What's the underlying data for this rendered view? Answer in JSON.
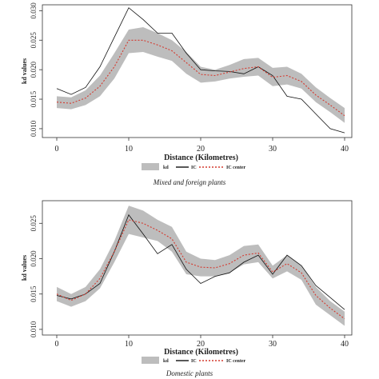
{
  "chart_data": [
    {
      "type": "line",
      "xlabel": "Distance (Kilometres)",
      "ylabel": "kd values",
      "caption": "Mixed and foreign plants",
      "xlim": [
        -2,
        41
      ],
      "ylim": [
        0.0085,
        0.031
      ],
      "xticks": [
        0,
        10,
        20,
        30,
        40
      ],
      "yticks": [
        0.01,
        0.015,
        0.02,
        0.025,
        0.03
      ],
      "ytick_labels": [
        "0.010",
        "0.015",
        "0.020",
        "0.025",
        "0.030"
      ],
      "legend": [
        "kd",
        "IC",
        "IC center"
      ],
      "x": [
        0,
        2,
        4,
        6,
        8,
        10,
        12,
        14,
        16,
        18,
        20,
        22,
        24,
        26,
        28,
        30,
        32,
        34,
        36,
        38,
        40
      ],
      "series": [
        {
          "name": "kd",
          "kind": "band",
          "low": [
            0.0135,
            0.0133,
            0.014,
            0.0155,
            0.0185,
            0.0228,
            0.023,
            0.0222,
            0.0215,
            0.0193,
            0.0178,
            0.018,
            0.0185,
            0.0188,
            0.019,
            0.0172,
            0.0175,
            0.0168,
            0.0145,
            0.0128,
            0.011
          ],
          "high": [
            0.0155,
            0.0153,
            0.0165,
            0.019,
            0.0228,
            0.0268,
            0.0272,
            0.0262,
            0.025,
            0.023,
            0.0205,
            0.02,
            0.0208,
            0.0218,
            0.022,
            0.0203,
            0.0205,
            0.0193,
            0.017,
            0.0152,
            0.0135
          ]
        },
        {
          "name": "IC",
          "values": [
            0.0168,
            0.0158,
            0.017,
            0.0205,
            0.0255,
            0.0305,
            0.0285,
            0.0262,
            0.0262,
            0.0228,
            0.02,
            0.0198,
            0.0197,
            0.0193,
            0.0205,
            0.019,
            0.0155,
            0.015,
            0.0125,
            0.01,
            0.0093
          ]
        },
        {
          "name": "IC center",
          "values": [
            0.0145,
            0.0143,
            0.0152,
            0.0172,
            0.0205,
            0.025,
            0.025,
            0.0242,
            0.0232,
            0.0212,
            0.0192,
            0.019,
            0.0196,
            0.0202,
            0.0205,
            0.0187,
            0.019,
            0.018,
            0.0157,
            0.014,
            0.0122
          ]
        }
      ]
    },
    {
      "type": "line",
      "xlabel": "Distance (Kilometres)",
      "ylabel": "kd values",
      "caption": "Domestic plants",
      "xlim": [
        -2,
        41
      ],
      "ylim": [
        0.0092,
        0.0282
      ],
      "xticks": [
        0,
        10,
        20,
        30,
        40
      ],
      "yticks": [
        0.01,
        0.015,
        0.02,
        0.025
      ],
      "ytick_labels": [
        "0.010",
        "0.015",
        "0.020",
        "0.025"
      ],
      "legend": [
        "kd",
        "IC",
        "IC center"
      ],
      "x": [
        0,
        2,
        4,
        6,
        8,
        10,
        12,
        14,
        16,
        18,
        20,
        22,
        24,
        26,
        28,
        30,
        32,
        34,
        36,
        38,
        40
      ],
      "series": [
        {
          "name": "kd",
          "kind": "band",
          "low": [
            0.014,
            0.0132,
            0.014,
            0.0158,
            0.0195,
            0.0235,
            0.023,
            0.0225,
            0.021,
            0.0178,
            0.0175,
            0.0175,
            0.018,
            0.0192,
            0.0195,
            0.0172,
            0.0182,
            0.017,
            0.0135,
            0.012,
            0.0105
          ],
          "high": [
            0.016,
            0.015,
            0.016,
            0.0185,
            0.0225,
            0.0275,
            0.0268,
            0.0255,
            0.0245,
            0.021,
            0.02,
            0.0198,
            0.0205,
            0.0218,
            0.022,
            0.019,
            0.0205,
            0.019,
            0.016,
            0.014,
            0.0125
          ]
        },
        {
          "name": "IC",
          "values": [
            0.0148,
            0.0143,
            0.015,
            0.0165,
            0.021,
            0.0262,
            0.0235,
            0.0207,
            0.022,
            0.0185,
            0.0165,
            0.0175,
            0.018,
            0.0195,
            0.0205,
            0.0178,
            0.0205,
            0.019,
            0.0162,
            0.0145,
            0.0128
          ]
        },
        {
          "name": "IC center",
          "values": [
            0.015,
            0.0141,
            0.015,
            0.0172,
            0.021,
            0.0255,
            0.025,
            0.024,
            0.0228,
            0.0195,
            0.0188,
            0.0187,
            0.0193,
            0.0205,
            0.0208,
            0.0181,
            0.0193,
            0.018,
            0.0148,
            0.013,
            0.0115
          ]
        }
      ]
    }
  ],
  "colors": {
    "band": "#bdbdbd",
    "ic": "#111111",
    "ic_center": "#d43a2f",
    "axis": "#333333",
    "text": "#222222"
  }
}
